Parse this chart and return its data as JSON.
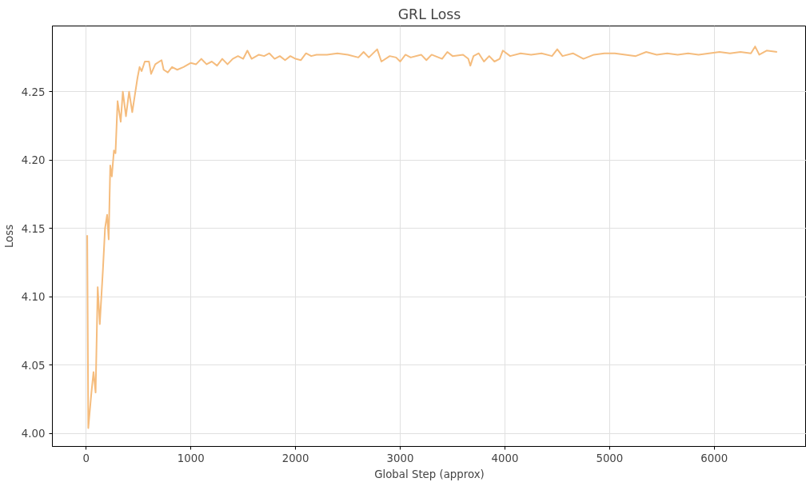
{
  "chart_data": {
    "type": "line",
    "title": "GRL Loss",
    "xlabel": "Global Step (approx)",
    "ylabel": "Loss",
    "xlim": [
      -323,
      6880
    ],
    "ylim": [
      3.9906,
      4.298
    ],
    "xticks": [
      0,
      1000,
      2000,
      3000,
      4000,
      5000,
      6000
    ],
    "yticks": [
      {
        "value": 4.0,
        "label": "4.00"
      },
      {
        "value": 4.05,
        "label": "4.05"
      },
      {
        "value": 4.1,
        "label": "4.10"
      },
      {
        "value": 4.15,
        "label": "4.15"
      },
      {
        "value": 4.2,
        "label": "4.20"
      },
      {
        "value": 4.25,
        "label": "4.25"
      }
    ],
    "grid": true,
    "line_style": "solid",
    "series": [
      {
        "color": "#f5bc7d",
        "x": [
          10,
          20,
          50,
          70,
          90,
          110,
          130,
          160,
          180,
          200,
          215,
          230,
          245,
          265,
          280,
          300,
          330,
          350,
          380,
          410,
          440,
          470,
          490,
          510,
          530,
          560,
          600,
          620,
          660,
          720,
          740,
          780,
          820,
          870,
          930,
          1000,
          1050,
          1100,
          1150,
          1200,
          1250,
          1300,
          1350,
          1400,
          1450,
          1500,
          1540,
          1580,
          1650,
          1700,
          1750,
          1800,
          1850,
          1900,
          1950,
          2000,
          2050,
          2100,
          2150,
          2200,
          2300,
          2400,
          2500,
          2600,
          2650,
          2700,
          2780,
          2820,
          2900,
          2960,
          3000,
          3050,
          3100,
          3200,
          3250,
          3300,
          3400,
          3450,
          3500,
          3600,
          3650,
          3670,
          3700,
          3750,
          3800,
          3850,
          3900,
          3950,
          3980,
          4050,
          4150,
          4250,
          4350,
          4450,
          4500,
          4550,
          4650,
          4750,
          4850,
          4950,
          5050,
          5150,
          5250,
          5350,
          5450,
          5550,
          5650,
          5750,
          5850,
          5950,
          6050,
          6150,
          6250,
          6350,
          6390,
          6430,
          6500,
          6600
        ],
        "values": [
          4.145,
          4.004,
          4.03,
          4.045,
          4.03,
          4.107,
          4.08,
          4.12,
          4.15,
          4.16,
          4.142,
          4.196,
          4.188,
          4.207,
          4.205,
          4.243,
          4.228,
          4.25,
          4.232,
          4.25,
          4.235,
          4.25,
          4.26,
          4.268,
          4.265,
          4.272,
          4.272,
          4.263,
          4.27,
          4.273,
          4.266,
          4.264,
          4.268,
          4.266,
          4.268,
          4.271,
          4.27,
          4.274,
          4.27,
          4.272,
          4.269,
          4.274,
          4.27,
          4.274,
          4.276,
          4.274,
          4.28,
          4.274,
          4.277,
          4.276,
          4.278,
          4.274,
          4.276,
          4.273,
          4.276,
          4.274,
          4.273,
          4.278,
          4.276,
          4.277,
          4.277,
          4.278,
          4.277,
          4.275,
          4.279,
          4.275,
          4.281,
          4.272,
          4.276,
          4.275,
          4.272,
          4.277,
          4.275,
          4.277,
          4.273,
          4.277,
          4.274,
          4.279,
          4.276,
          4.277,
          4.274,
          4.269,
          4.276,
          4.278,
          4.272,
          4.276,
          4.272,
          4.274,
          4.28,
          4.276,
          4.278,
          4.277,
          4.278,
          4.276,
          4.281,
          4.276,
          4.278,
          4.274,
          4.277,
          4.278,
          4.278,
          4.277,
          4.276,
          4.279,
          4.277,
          4.278,
          4.277,
          4.278,
          4.277,
          4.278,
          4.279,
          4.278,
          4.279,
          4.278,
          4.283,
          4.277,
          4.28,
          4.279
        ]
      }
    ]
  }
}
